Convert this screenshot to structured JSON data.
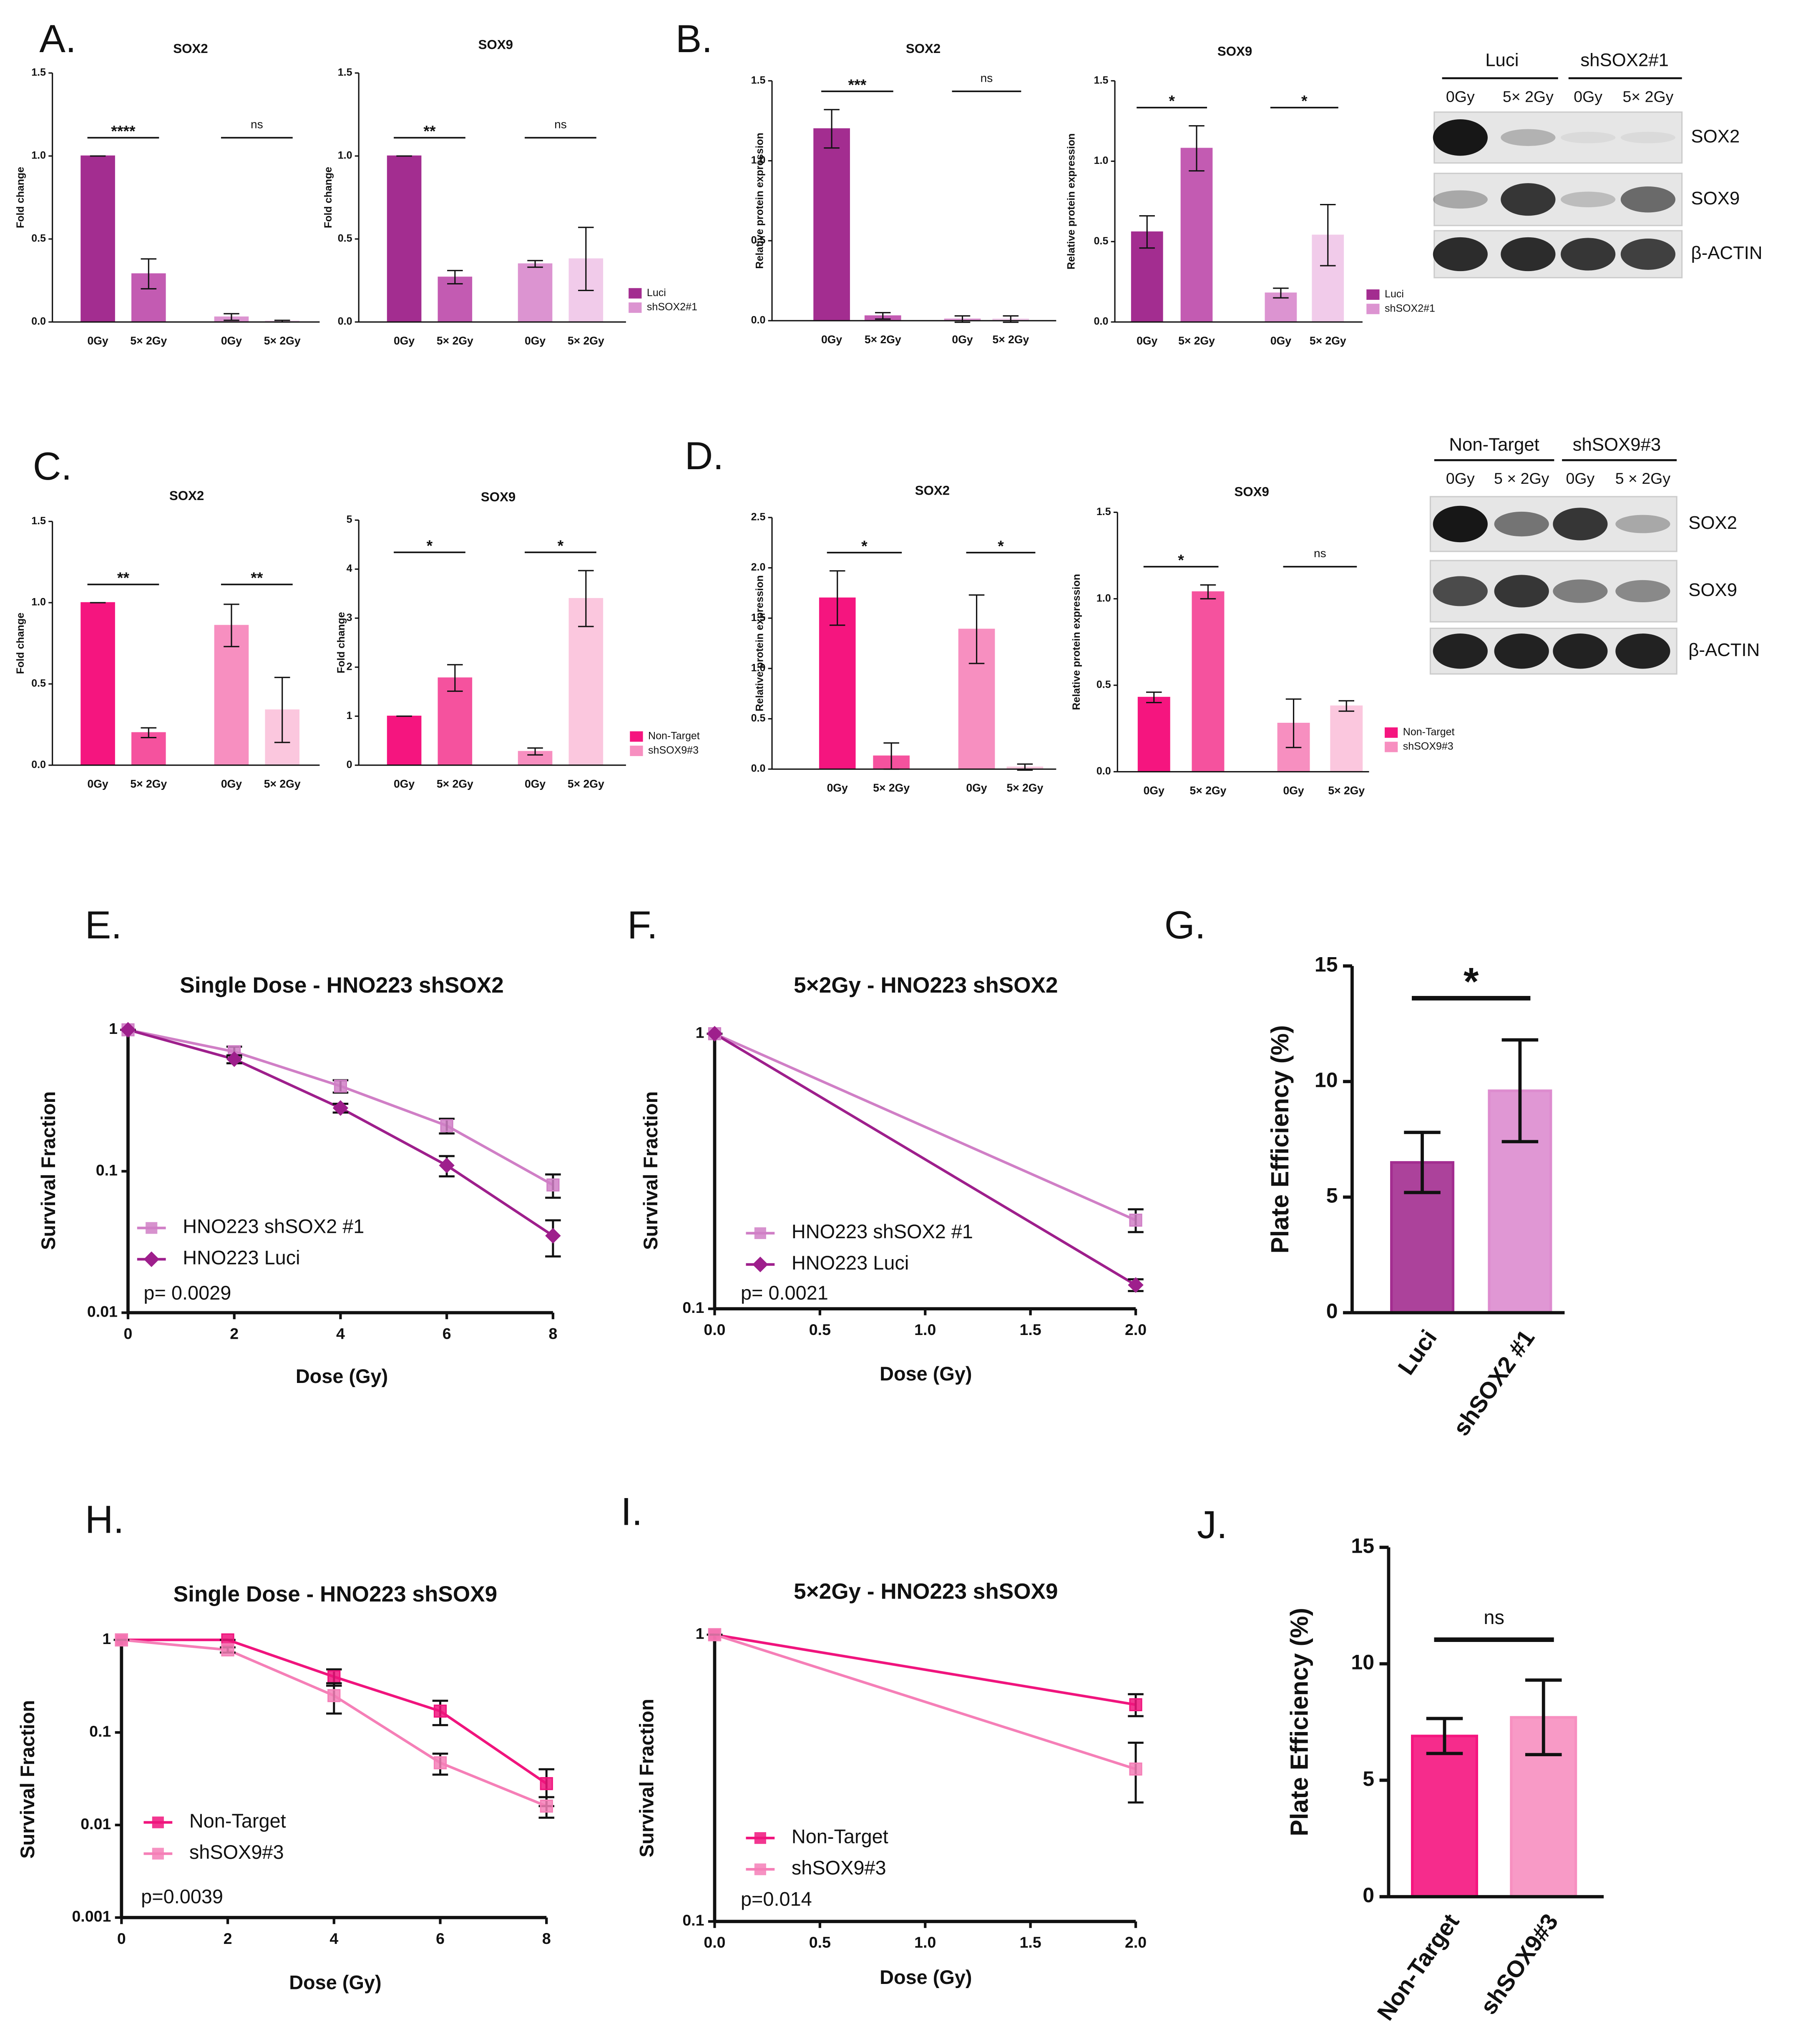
{
  "panel_labels": [
    "A.",
    "B.",
    "C.",
    "D.",
    "E.",
    "F.",
    "G.",
    "H.",
    "I.",
    "J."
  ],
  "blots": [
    {
      "groups": [
        "Luci",
        "shSOX2#1"
      ],
      "lanes": [
        "0Gy",
        "5× 2Gy",
        "0Gy",
        "5× 2Gy"
      ],
      "rows": [
        "SOX2",
        "SOX9",
        "β-ACTIN"
      ]
    },
    {
      "groups": [
        "Non-Target",
        "shSOX9#3"
      ],
      "lanes": [
        "0Gy",
        "5 × 2Gy",
        "0Gy",
        "5 × 2Gy"
      ],
      "rows": [
        "SOX2",
        "SOX9",
        "β-ACTIN"
      ]
    }
  ],
  "chart_data": [
    {
      "type": "bar",
      "title": "SOX2",
      "y_label": "Fold change",
      "categories": [
        "0Gy",
        "5× 2Gy",
        "0Gy",
        "5× 2Gy"
      ],
      "values": [
        1,
        0.29,
        0.03,
        0.005
      ],
      "errors": [
        0,
        0.09,
        0.02,
        0.005
      ],
      "colors": [
        "#a32d90",
        "#c35bb2",
        "#dc94d1",
        "#f1cbea"
      ],
      "significance": [
        "****",
        "ns"
      ],
      "ylim": [
        0,
        1.5
      ],
      "yticks": [
        {
          "value": 0,
          "label": "0.0"
        },
        0.5,
        {
          "value": 1,
          "label": "1.0"
        },
        1.5
      ]
    },
    {
      "type": "bar",
      "title": "SOX9",
      "y_label": "Fold change",
      "categories": [
        "0Gy",
        "5× 2Gy",
        "0Gy",
        "5× 2Gy"
      ],
      "values": [
        1,
        0.27,
        0.35,
        0.38
      ],
      "errors": [
        0,
        0.04,
        0.02,
        0.19
      ],
      "colors": [
        "#a32d90",
        "#c35bb2",
        "#dc94d1",
        "#f1cbea"
      ],
      "significance": [
        "**",
        "ns"
      ],
      "ylim": [
        0,
        1.5
      ],
      "yticks": [
        {
          "value": 0,
          "label": "0.0"
        },
        0.5,
        {
          "value": 1,
          "label": "1.0"
        },
        1.5
      ],
      "legend": [
        {
          "name": "Luci",
          "color": "#a32d90"
        },
        {
          "name": "shSOX2#1",
          "color": "#dc94d1"
        }
      ]
    },
    {
      "type": "bar",
      "title": "SOX2",
      "y_label": "Relative protein expression",
      "categories": [
        "0Gy",
        "5× 2Gy",
        "0Gy",
        "5× 2Gy"
      ],
      "values": [
        1.2,
        0.03,
        0.01,
        0.01
      ],
      "errors": [
        0.12,
        0.02,
        0.02,
        0.02
      ],
      "colors": [
        "#a32d90",
        "#c35bb2",
        "#dc94d1",
        "#f1cbea"
      ],
      "significance": [
        "***",
        "ns"
      ],
      "ylim": [
        0,
        1.5
      ],
      "yticks": [
        {
          "value": 0,
          "label": "0.0"
        },
        0.5,
        {
          "value": 1,
          "label": "1.0"
        },
        1.5
      ]
    },
    {
      "type": "bar",
      "title": "SOX9",
      "y_label": "Relative protein expression",
      "categories": [
        "0Gy",
        "5× 2Gy",
        "0Gy",
        "5× 2Gy"
      ],
      "values": [
        0.56,
        1.08,
        0.18,
        0.54
      ],
      "errors": [
        0.1,
        0.14,
        0.03,
        0.19
      ],
      "colors": [
        "#a32d90",
        "#c35bb2",
        "#dc94d1",
        "#f1cbea"
      ],
      "significance": [
        "*",
        "*"
      ],
      "ylim": [
        0,
        1.5
      ],
      "yticks": [
        {
          "value": 0,
          "label": "0.0"
        },
        0.5,
        {
          "value": 1,
          "label": "1.0"
        },
        1.5
      ],
      "legend": [
        {
          "name": "Luci",
          "color": "#a32d90"
        },
        {
          "name": "shSOX2#1",
          "color": "#dc94d1"
        }
      ]
    },
    {
      "type": "bar",
      "title": "SOX2",
      "y_label": "Fold change",
      "categories": [
        "0Gy",
        "5× 2Gy",
        "0Gy",
        "5× 2Gy"
      ],
      "values": [
        1,
        0.2,
        0.86,
        0.34
      ],
      "errors": [
        0,
        0.03,
        0.13,
        0.2
      ],
      "colors": [
        "#f5157f",
        "#f5529e",
        "#f78fc0",
        "#fbc7de"
      ],
      "significance": [
        "**",
        "**"
      ],
      "ylim": [
        0,
        1.5
      ],
      "yticks": [
        {
          "value": 0,
          "label": "0.0"
        },
        0.5,
        {
          "value": 1,
          "label": "1.0"
        },
        1.5
      ]
    },
    {
      "type": "bar",
      "title": "SOX9",
      "y_label": "Fold change",
      "categories": [
        "0Gy",
        "5× 2Gy",
        "0Gy",
        "5× 2Gy"
      ],
      "values": [
        1,
        1.78,
        0.28,
        3.4
      ],
      "errors": [
        0,
        0.27,
        0.07,
        0.57
      ],
      "colors": [
        "#f5157f",
        "#f5529e",
        "#f78fc0",
        "#fbc7de"
      ],
      "significance": [
        "*",
        "*"
      ],
      "ylim": [
        0,
        5
      ],
      "yticks": [
        0,
        1,
        2,
        3,
        4,
        5
      ],
      "legend": [
        {
          "name": "Non-Target",
          "color": "#f5157f"
        },
        {
          "name": "shSOX9#3",
          "color": "#f78fc0"
        }
      ]
    },
    {
      "type": "bar",
      "title": "SOX2",
      "y_label": "Relative protein expression",
      "categories": [
        "0Gy",
        "5× 2Gy",
        "0Gy",
        "5× 2Gy"
      ],
      "values": [
        1.7,
        0.13,
        1.39,
        0.02
      ],
      "errors": [
        0.27,
        0.13,
        0.34,
        0.03
      ],
      "colors": [
        "#f5157f",
        "#f5529e",
        "#f78fc0",
        "#fbc7de"
      ],
      "significance": [
        "*",
        "*"
      ],
      "ylim": [
        0,
        2.5
      ],
      "yticks": [
        {
          "value": 0,
          "label": "0.0"
        },
        0.5,
        {
          "value": 1,
          "label": "1.0"
        },
        1.5,
        {
          "value": 2,
          "label": "2.0"
        },
        2.5
      ]
    },
    {
      "type": "bar",
      "title": "SOX9",
      "y_label": "Relative protein expression",
      "categories": [
        "0Gy",
        "5× 2Gy",
        "0Gy",
        "5× 2Gy"
      ],
      "values": [
        0.43,
        1.04,
        0.28,
        0.38
      ],
      "errors": [
        0.03,
        0.04,
        0.14,
        0.03
      ],
      "colors": [
        "#f5157f",
        "#f5529e",
        "#f78fc0",
        "#fbc7de"
      ],
      "significance": [
        "*",
        "ns"
      ],
      "ylim": [
        0,
        1.5
      ],
      "yticks": [
        {
          "value": 0,
          "label": "0.0"
        },
        0.5,
        {
          "value": 1,
          "label": "1.0"
        },
        1.5
      ],
      "legend": [
        {
          "name": "Non-Target",
          "color": "#f5157f"
        },
        {
          "name": "shSOX9#3",
          "color": "#f78fc0"
        }
      ]
    },
    {
      "type": "line",
      "title": "Single Dose - HNO223 shSOX2",
      "x_label": "Dose (Gy)",
      "y_label": "Survival Fraction",
      "log_scale": true,
      "annotation": "p= 0.0029",
      "x": [
        0,
        2,
        4,
        6,
        8
      ],
      "xlim": [
        0,
        8
      ],
      "xticks": [
        0,
        2,
        4,
        6,
        8
      ],
      "ylim": [
        0.01,
        1
      ],
      "yticks": [
        0.01,
        0.1,
        1
      ],
      "series": [
        {
          "name": "HNO223 shSOX2 #1",
          "color": "#d07fc6",
          "marker": "square",
          "values": [
            1,
            0.7,
            0.4,
            0.21,
            0.08
          ],
          "errors": [
            0,
            0.06,
            0.04,
            0.025,
            0.015
          ]
        },
        {
          "name": "HNO223 Luci",
          "color": "#9e1f8c",
          "marker": "diamond",
          "values": [
            1,
            0.62,
            0.28,
            0.11,
            0.035
          ],
          "errors": [
            0,
            0.04,
            0.02,
            0.018,
            0.01
          ]
        }
      ]
    },
    {
      "type": "line",
      "title": "5×2Gy - HNO223 shSOX2",
      "x_label": "Dose (Gy)",
      "y_label": "Survival Fraction",
      "log_scale": true,
      "annotation": "p= 0.0021",
      "x": [
        0,
        2
      ],
      "xlim": [
        0,
        2
      ],
      "xticks": [
        {
          "value": 0,
          "label": "0.0"
        },
        0.5,
        {
          "value": 1,
          "label": "1.0"
        },
        1.5,
        {
          "value": 2,
          "label": "2.0"
        }
      ],
      "ylim": [
        0.1,
        1
      ],
      "yticks": [
        0.1,
        1
      ],
      "series": [
        {
          "name": "HNO223 shSOX2 #1",
          "color": "#d07fc6",
          "marker": "square",
          "values": [
            1,
            0.21
          ],
          "errors": [
            0,
            0.02
          ]
        },
        {
          "name": "HNO223 Luci",
          "color": "#9e1f8c",
          "marker": "diamond",
          "values": [
            1,
            0.122
          ],
          "errors": [
            0,
            0.006
          ]
        }
      ]
    },
    {
      "type": "bar",
      "y_label": "Plate Efficiency (%)",
      "categories": [
        "Luci",
        "shSOX2 #1"
      ],
      "values": [
        6.5,
        9.6
      ],
      "errors": [
        1.3,
        2.2
      ],
      "colors": [
        "#a32d90",
        "#dd8ccf"
      ],
      "significance": [
        "*"
      ],
      "ylim": [
        0,
        15
      ],
      "yticks": [
        0,
        5,
        10,
        15
      ]
    },
    {
      "type": "line",
      "title": "Single Dose - HNO223 shSOX9",
      "x_label": "Dose (Gy)",
      "y_label": "Survival Fraction",
      "log_scale": true,
      "annotation": "p=0.0039",
      "x": [
        0,
        2,
        4,
        6,
        8
      ],
      "xlim": [
        0,
        8
      ],
      "xticks": [
        0,
        2,
        4,
        6,
        8
      ],
      "ylim": [
        0.001,
        1
      ],
      "yticks": [
        0.001,
        0.01,
        0.1,
        1
      ],
      "series": [
        {
          "name": "Non-Target",
          "color": "#f0147d",
          "marker": "square",
          "values": [
            1,
            1,
            0.4,
            0.17,
            0.028
          ],
          "errors": [
            0,
            0,
            0.08,
            0.05,
            0.012
          ]
        },
        {
          "name": "shSOX9#3",
          "color": "#f57fb7",
          "marker": "square",
          "values": [
            1,
            0.78,
            0.25,
            0.047,
            0.016
          ],
          "errors": [
            0,
            0.05,
            0.09,
            0.012,
            0.004
          ]
        }
      ]
    },
    {
      "type": "line",
      "title": "5×2Gy - HNO223 shSOX9",
      "x_label": "Dose (Gy)",
      "y_label": "Survival Fraction",
      "log_scale": true,
      "annotation": "p=0.014",
      "x": [
        0,
        2
      ],
      "xlim": [
        0,
        2
      ],
      "xticks": [
        {
          "value": 0,
          "label": "0.0"
        },
        0.5,
        {
          "value": 1,
          "label": "1.0"
        },
        1.5,
        {
          "value": 2,
          "label": "2.0"
        }
      ],
      "ylim": [
        0.1,
        1
      ],
      "yticks": [
        0.1,
        1
      ],
      "series": [
        {
          "name": "Non-Target",
          "color": "#f0147d",
          "marker": "square",
          "values": [
            1,
            0.57
          ],
          "errors": [
            0,
            0.05
          ]
        },
        {
          "name": "shSOX9#3",
          "color": "#f57fb7",
          "marker": "square",
          "values": [
            1,
            0.34
          ],
          "errors": [
            0,
            0.08
          ]
        }
      ]
    },
    {
      "type": "bar",
      "y_label": "Plate Efficiency (%)",
      "categories": [
        "Non-Target",
        "shSOX9#3"
      ],
      "values": [
        6.9,
        7.7
      ],
      "errors": [
        0.75,
        1.6
      ],
      "colors": [
        "#f5157f",
        "#f78fc0"
      ],
      "significance": [
        "ns"
      ],
      "ylim": [
        0,
        15
      ],
      "yticks": [
        0,
        5,
        10,
        15
      ]
    }
  ]
}
